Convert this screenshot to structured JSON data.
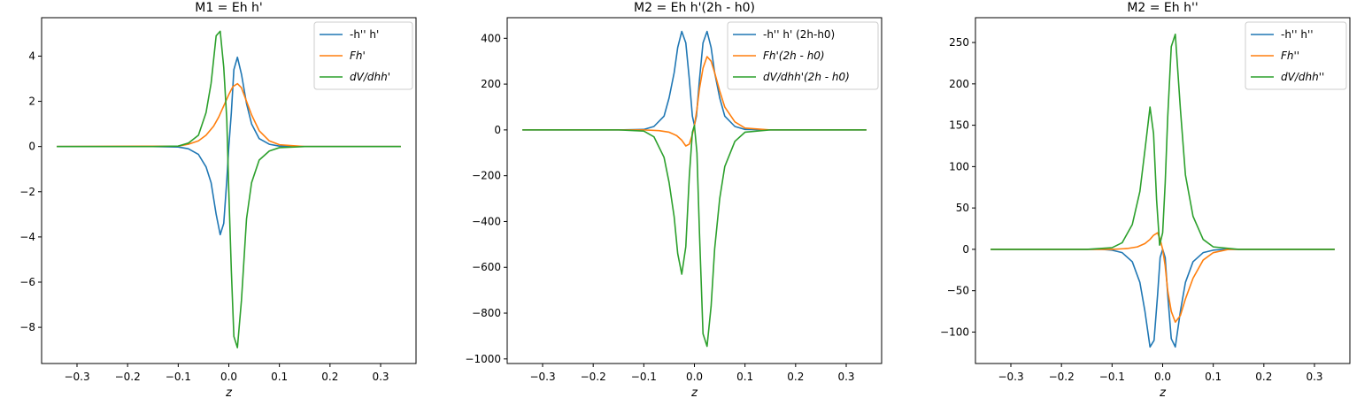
{
  "chart_data": [
    {
      "type": "line",
      "title": "M1 = Eh h'",
      "xlabel": "z",
      "xlim": [
        -0.37,
        0.37
      ],
      "ylim": [
        -9.6,
        5.7
      ],
      "xticks": [
        -0.3,
        -0.2,
        -0.1,
        0.0,
        0.1,
        0.2,
        0.3
      ],
      "xtick_labels": [
        "−0.3",
        "−0.2",
        "−0.1",
        "0.0",
        "0.1",
        "0.2",
        "0.3"
      ],
      "yticks": [
        -8,
        -6,
        -4,
        -2,
        0,
        2,
        4
      ],
      "ytick_labels": [
        "−8",
        "−6",
        "−4",
        "−2",
        "0",
        "2",
        "4"
      ],
      "legend_position": "top-right",
      "series": [
        {
          "name": "-h'' h'",
          "color": "#1f77b4",
          "x": [
            -0.34,
            -0.15,
            -0.1,
            -0.08,
            -0.06,
            -0.045,
            -0.035,
            -0.025,
            -0.017,
            -0.01,
            -0.004,
            0.0,
            0.005,
            0.01,
            0.017,
            0.025,
            0.035,
            0.045,
            0.06,
            0.08,
            0.1,
            0.15,
            0.34
          ],
          "y": [
            0,
            0,
            -0.02,
            -0.1,
            -0.35,
            -0.9,
            -1.6,
            -3.0,
            -3.9,
            -3.4,
            -1.5,
            0.0,
            1.5,
            3.4,
            3.95,
            3.2,
            1.9,
            1.0,
            0.35,
            0.1,
            0.02,
            0,
            0
          ]
        },
        {
          "name": "Fh'",
          "color": "#ff7f0e",
          "x": [
            -0.34,
            -0.1,
            -0.08,
            -0.06,
            -0.045,
            -0.03,
            -0.02,
            -0.01,
            0.0,
            0.008,
            0.017,
            0.025,
            0.035,
            0.045,
            0.06,
            0.08,
            0.1,
            0.15,
            0.34
          ],
          "y": [
            0,
            0.02,
            0.1,
            0.25,
            0.5,
            0.9,
            1.3,
            1.8,
            2.3,
            2.65,
            2.78,
            2.6,
            2.0,
            1.4,
            0.7,
            0.25,
            0.08,
            0,
            0
          ]
        },
        {
          "name": "dV/dhh'",
          "color": "#2ca02c",
          "x": [
            -0.34,
            -0.15,
            -0.1,
            -0.08,
            -0.06,
            -0.045,
            -0.035,
            -0.025,
            -0.017,
            -0.01,
            -0.004,
            0.0,
            0.005,
            0.01,
            0.017,
            0.025,
            0.035,
            0.045,
            0.06,
            0.08,
            0.1,
            0.15,
            0.34
          ],
          "y": [
            0,
            0,
            0.02,
            0.15,
            0.5,
            1.5,
            2.8,
            4.9,
            5.1,
            3.5,
            1.2,
            -2.0,
            -5.5,
            -8.4,
            -8.9,
            -6.8,
            -3.2,
            -1.6,
            -0.6,
            -0.2,
            -0.05,
            0,
            0
          ]
        }
      ]
    },
    {
      "type": "line",
      "title": "M2 = Eh h'(2h - h0)",
      "xlabel": "z",
      "xlim": [
        -0.37,
        0.37
      ],
      "ylim": [
        -1020,
        490
      ],
      "xticks": [
        -0.3,
        -0.2,
        -0.1,
        0.0,
        0.1,
        0.2,
        0.3
      ],
      "xtick_labels": [
        "−0.3",
        "−0.2",
        "−0.1",
        "0.0",
        "0.1",
        "0.2",
        "0.3"
      ],
      "yticks": [
        -1000,
        -800,
        -600,
        -400,
        -200,
        0,
        200,
        400
      ],
      "ytick_labels": [
        "−1000",
        "−800",
        "−600",
        "−400",
        "−200",
        "0",
        "200",
        "400"
      ],
      "legend_position": "top-right",
      "series": [
        {
          "name": "-h'' h' (2h-h0)",
          "color": "#1f77b4",
          "x": [
            -0.34,
            -0.15,
            -0.1,
            -0.08,
            -0.06,
            -0.05,
            -0.04,
            -0.033,
            -0.025,
            -0.017,
            -0.01,
            -0.004,
            0.0,
            0.004,
            0.01,
            0.017,
            0.025,
            0.033,
            0.04,
            0.05,
            0.06,
            0.08,
            0.1,
            0.15,
            0.34
          ],
          "y": [
            0,
            0,
            2,
            15,
            60,
            140,
            250,
            360,
            430,
            380,
            220,
            60,
            20,
            60,
            220,
            380,
            430,
            360,
            250,
            140,
            60,
            15,
            2,
            0,
            0
          ]
        },
        {
          "name": "Fh'(2h - h0)",
          "color": "#ff7f0e",
          "x": [
            -0.34,
            -0.1,
            -0.07,
            -0.05,
            -0.035,
            -0.025,
            -0.017,
            -0.01,
            -0.004,
            0.0,
            0.005,
            0.01,
            0.017,
            0.025,
            0.033,
            0.04,
            0.05,
            0.06,
            0.08,
            0.1,
            0.15,
            0.34
          ],
          "y": [
            0,
            0,
            -3,
            -10,
            -25,
            -45,
            -70,
            -62,
            -20,
            20,
            90,
            180,
            270,
            320,
            300,
            250,
            170,
            100,
            35,
            8,
            0,
            0
          ]
        },
        {
          "name": "dV/dhh'(2h - h0)",
          "color": "#2ca02c",
          "x": [
            -0.34,
            -0.15,
            -0.1,
            -0.08,
            -0.06,
            -0.05,
            -0.04,
            -0.033,
            -0.025,
            -0.017,
            -0.01,
            -0.004,
            0.0,
            0.005,
            0.01,
            0.017,
            0.025,
            0.033,
            0.04,
            0.05,
            0.06,
            0.08,
            0.1,
            0.15,
            0.34
          ],
          "y": [
            0,
            0,
            -5,
            -30,
            -120,
            -230,
            -380,
            -540,
            -630,
            -510,
            -200,
            -10,
            20,
            -100,
            -450,
            -890,
            -945,
            -770,
            -520,
            -300,
            -160,
            -50,
            -10,
            0,
            0
          ]
        }
      ]
    },
    {
      "type": "line",
      "title": "M2 = Eh h''",
      "xlabel": "z",
      "xlim": [
        -0.37,
        0.37
      ],
      "ylim": [
        -138,
        280
      ],
      "xticks": [
        -0.3,
        -0.2,
        -0.1,
        0.0,
        0.1,
        0.2,
        0.3
      ],
      "xtick_labels": [
        "−0.3",
        "−0.2",
        "−0.1",
        "0.0",
        "0.1",
        "0.2",
        "0.3"
      ],
      "yticks": [
        -100,
        -50,
        0,
        50,
        100,
        150,
        200,
        250
      ],
      "ytick_labels": [
        "−100",
        "−50",
        "0",
        "50",
        "100",
        "150",
        "200",
        "250"
      ],
      "legend_position": "top-right",
      "series": [
        {
          "name": "-h'' h''",
          "color": "#1f77b4",
          "x": [
            -0.34,
            -0.12,
            -0.1,
            -0.08,
            -0.06,
            -0.045,
            -0.035,
            -0.025,
            -0.017,
            -0.01,
            -0.005,
            0.0,
            0.005,
            0.01,
            0.017,
            0.025,
            0.035,
            0.045,
            0.06,
            0.08,
            0.1,
            0.12,
            0.34
          ],
          "y": [
            0,
            0,
            -1,
            -4,
            -15,
            -40,
            -75,
            -118,
            -110,
            -55,
            -10,
            0,
            -10,
            -55,
            -108,
            -118,
            -75,
            -40,
            -15,
            -4,
            -1,
            0,
            0
          ]
        },
        {
          "name": "Fh''",
          "color": "#ff7f0e",
          "x": [
            -0.34,
            -0.1,
            -0.07,
            -0.05,
            -0.035,
            -0.025,
            -0.018,
            -0.01,
            -0.005,
            0.0,
            0.005,
            0.01,
            0.017,
            0.025,
            0.035,
            0.045,
            0.06,
            0.08,
            0.1,
            0.13,
            0.34
          ],
          "y": [
            0,
            0,
            1,
            3,
            7,
            12,
            17,
            20,
            12,
            0,
            -20,
            -50,
            -75,
            -88,
            -80,
            -60,
            -35,
            -13,
            -4,
            0,
            0
          ]
        },
        {
          "name": "dV/dhh''",
          "color": "#2ca02c",
          "x": [
            -0.34,
            -0.15,
            -0.1,
            -0.08,
            -0.06,
            -0.045,
            -0.035,
            -0.025,
            -0.018,
            -0.012,
            -0.006,
            0.0,
            0.005,
            0.01,
            0.017,
            0.025,
            0.035,
            0.045,
            0.06,
            0.08,
            0.1,
            0.15,
            0.34
          ],
          "y": [
            0,
            0,
            2,
            8,
            30,
            70,
            120,
            172,
            140,
            60,
            5,
            20,
            80,
            160,
            245,
            260,
            170,
            90,
            40,
            12,
            3,
            0,
            0
          ]
        }
      ]
    }
  ]
}
